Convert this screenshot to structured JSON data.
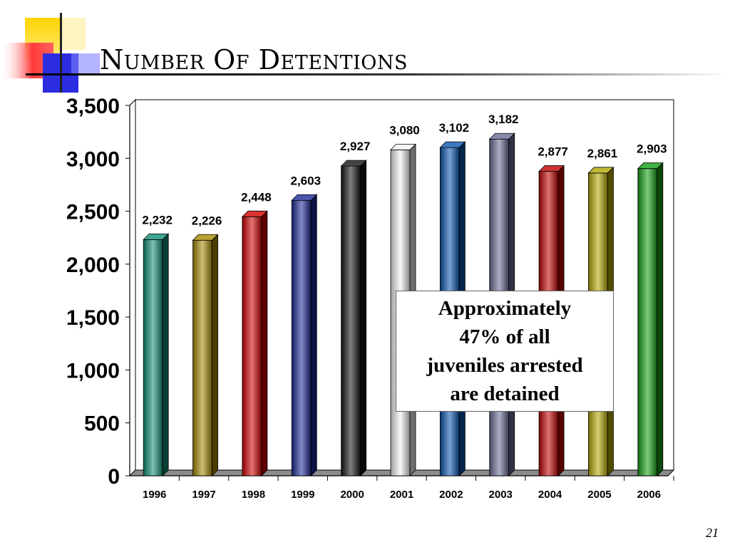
{
  "slide": {
    "title": "Number Of Detentions",
    "page_number": "21",
    "note": "Approximately\n47% of all\njuveniles arrested\nare detained"
  },
  "chart_data": {
    "type": "bar",
    "title": "Number Of Detentions",
    "xlabel": "",
    "ylabel": "",
    "categories": [
      "1996",
      "1997",
      "1998",
      "1999",
      "2000",
      "2001",
      "2002",
      "2003",
      "2004",
      "2005",
      "2006"
    ],
    "values": [
      2232,
      2226,
      2448,
      2603,
      2927,
      3080,
      3102,
      3182,
      2877,
      2861,
      2903
    ],
    "value_labels": [
      "2,232",
      "2,226",
      "2,448",
      "2,603",
      "2,927",
      "3,080",
      "3,102",
      "3,182",
      "2,877",
      "2,861",
      "2,903"
    ],
    "ylim": [
      0,
      3500
    ],
    "yticks": [
      0,
      500,
      1000,
      1500,
      2000,
      2500,
      3000,
      3500
    ],
    "ytick_labels": [
      "0",
      "500",
      "1,000",
      "1,500",
      "2,000",
      "2,500",
      "3,000",
      "3,500"
    ],
    "grid": true,
    "bar_colors": [
      "#0f8f74",
      "#a88a00",
      "#d40000",
      "#1e2a9a",
      "#151515",
      "#f2f2f2",
      "#0a55b0",
      "#6a6e96",
      "#c40000",
      "#b5a800",
      "#13a013"
    ]
  }
}
